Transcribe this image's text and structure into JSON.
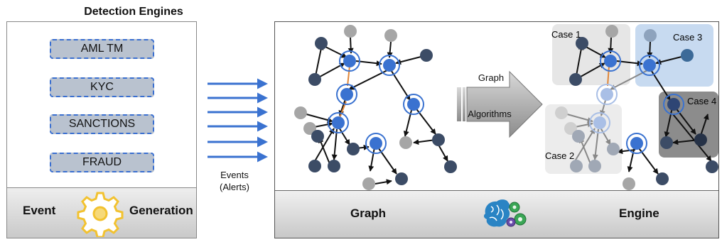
{
  "title": "Detection Engines",
  "engines": [
    "AML TM",
    "KYC",
    "SANCTIONS",
    "FRAUD"
  ],
  "left_footer": {
    "left": "Event",
    "right": "Generation"
  },
  "events_label": {
    "line1": "Events",
    "line2": "(Alerts)"
  },
  "graph_arrow": {
    "top": "Graph",
    "bottom": "Algorithms"
  },
  "cases": [
    "Case 1",
    "Case 2",
    "Case 3",
    "Case 4"
  ],
  "right_footer": {
    "left": "Graph",
    "right": "Engine"
  },
  "colors": {
    "blue": "#3a72d0",
    "dark": "#3c4c66",
    "grey": "#a6a6a6",
    "engine_fill": "#b9c2cf"
  }
}
